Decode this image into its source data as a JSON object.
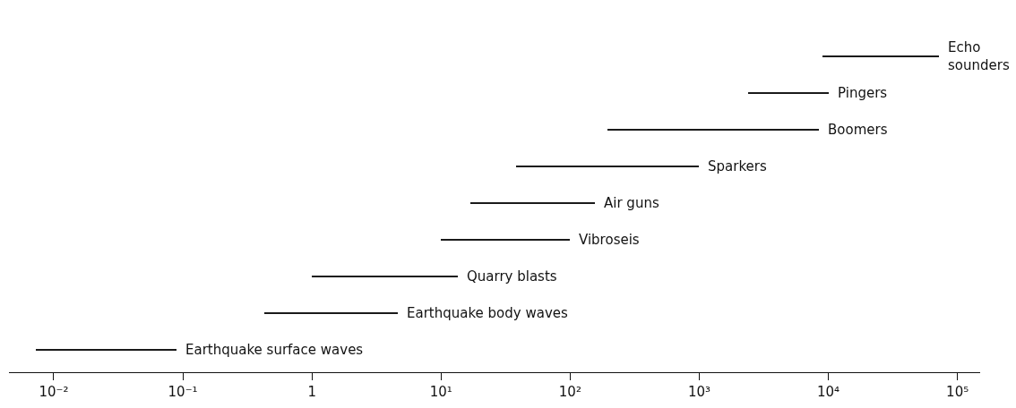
{
  "chart_data": {
    "type": "bar",
    "orientation": "horizontal",
    "categories": [
      "Echo\nsounders",
      "Pingers",
      "Boomers",
      "Sparkers",
      "Air guns",
      "Vibroseis",
      "Quarry blasts",
      "Earthquake body waves",
      "Earthquake surface waves"
    ],
    "base": [
      9000,
      2400,
      195,
      38,
      17,
      10,
      1,
      0.43,
      0.0073
    ],
    "values": [
      63000,
      7600,
      8305,
      962,
      138,
      90,
      12.5,
      4.17,
      0.0827
    ],
    "color": "#1a1a1a",
    "log": "x",
    "xlim": [
      0.0045,
      150000
    ],
    "xticks": [
      {
        "value": 0.01,
        "label": "10⁻²"
      },
      {
        "value": 0.1,
        "label": "10⁻¹"
      },
      1,
      {
        "value": 10,
        "label": "10¹"
      },
      {
        "value": 100,
        "label": "10²"
      },
      {
        "value": 1000,
        "label": "10³"
      },
      {
        "value": 10000,
        "label": "10⁴"
      },
      {
        "value": 100000,
        "label": "10⁵"
      }
    ],
    "tick_labels": "x"
  }
}
